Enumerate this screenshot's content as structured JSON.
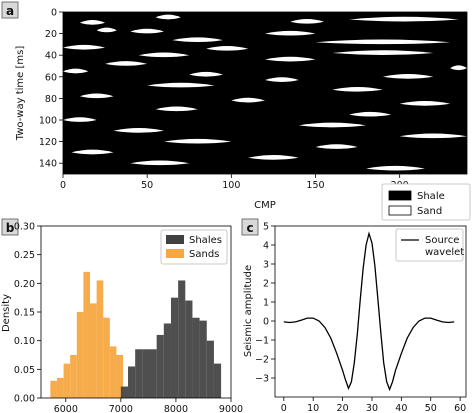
{
  "chart_data": [
    {
      "panel": "a",
      "type": "heatmap",
      "xlabel": "CMP",
      "ylabel": "Two-way time [ms]",
      "xlim": [
        0,
        240
      ],
      "ylim": [
        150,
        0
      ],
      "xticks": [
        0,
        50,
        100,
        150,
        200
      ],
      "yticks": [
        0,
        20,
        40,
        60,
        80,
        100,
        120,
        140
      ],
      "colors": {
        "Shale": "#000000",
        "Sand": "#ffffff"
      },
      "legend": [
        "Shale",
        "Sand"
      ],
      "legend_position": "bottom-right outside",
      "sand_lenses": [
        {
          "t": 5,
          "cmp0": 55,
          "cmp1": 70
        },
        {
          "t": 7,
          "cmp0": 170,
          "cmp1": 235
        },
        {
          "t": 9,
          "cmp0": 135,
          "cmp1": 155
        },
        {
          "t": 10,
          "cmp0": 10,
          "cmp1": 25
        },
        {
          "t": 17,
          "cmp0": 20,
          "cmp1": 32
        },
        {
          "t": 18,
          "cmp0": 40,
          "cmp1": 60
        },
        {
          "t": 20,
          "cmp0": 120,
          "cmp1": 150
        },
        {
          "t": 26,
          "cmp0": 65,
          "cmp1": 95
        },
        {
          "t": 28,
          "cmp0": 150,
          "cmp1": 230
        },
        {
          "t": 33,
          "cmp0": 0,
          "cmp1": 25
        },
        {
          "t": 34,
          "cmp0": 85,
          "cmp1": 110
        },
        {
          "t": 38,
          "cmp0": 160,
          "cmp1": 220
        },
        {
          "t": 40,
          "cmp0": 45,
          "cmp1": 75
        },
        {
          "t": 44,
          "cmp0": 120,
          "cmp1": 150
        },
        {
          "t": 48,
          "cmp0": 25,
          "cmp1": 50
        },
        {
          "t": 52,
          "cmp0": 230,
          "cmp1": 240
        },
        {
          "t": 55,
          "cmp0": 0,
          "cmp1": 15
        },
        {
          "t": 58,
          "cmp0": 75,
          "cmp1": 95
        },
        {
          "t": 60,
          "cmp0": 190,
          "cmp1": 220
        },
        {
          "t": 63,
          "cmp0": 120,
          "cmp1": 140
        },
        {
          "t": 68,
          "cmp0": 50,
          "cmp1": 90
        },
        {
          "t": 72,
          "cmp0": 160,
          "cmp1": 190
        },
        {
          "t": 78,
          "cmp0": 10,
          "cmp1": 30
        },
        {
          "t": 82,
          "cmp0": 100,
          "cmp1": 120
        },
        {
          "t": 85,
          "cmp0": 200,
          "cmp1": 230
        },
        {
          "t": 90,
          "cmp0": 55,
          "cmp1": 80
        },
        {
          "t": 95,
          "cmp0": 170,
          "cmp1": 195
        },
        {
          "t": 100,
          "cmp0": 0,
          "cmp1": 20
        },
        {
          "t": 105,
          "cmp0": 140,
          "cmp1": 180
        },
        {
          "t": 110,
          "cmp0": 30,
          "cmp1": 60
        },
        {
          "t": 115,
          "cmp0": 200,
          "cmp1": 240
        },
        {
          "t": 120,
          "cmp0": 60,
          "cmp1": 100
        },
        {
          "t": 125,
          "cmp0": 150,
          "cmp1": 175
        },
        {
          "t": 130,
          "cmp0": 5,
          "cmp1": 30
        },
        {
          "t": 135,
          "cmp0": 110,
          "cmp1": 140
        },
        {
          "t": 140,
          "cmp0": 40,
          "cmp1": 75
        },
        {
          "t": 145,
          "cmp0": 180,
          "cmp1": 215
        }
      ]
    },
    {
      "panel": "b",
      "type": "bar",
      "subtype": "histogram",
      "ylabel": "Density",
      "xlim": [
        5550,
        9000
      ],
      "ylim": [
        0,
        0.3
      ],
      "xticks": [
        6000,
        7000,
        8000,
        9000
      ],
      "yticks": [
        0.0,
        0.05,
        0.1,
        0.15,
        0.2,
        0.25,
        0.3
      ],
      "legend_position": "top-right",
      "series": [
        {
          "name": "Shales",
          "color": "#404040",
          "bin_edges": [
            7000,
            7130,
            7260,
            7390,
            7520,
            7650,
            7780,
            7910,
            8040,
            8170,
            8300,
            8430,
            8560,
            8690,
            8820
          ],
          "values": [
            0.02,
            0.055,
            0.085,
            0.085,
            0.085,
            0.11,
            0.13,
            0.175,
            0.205,
            0.17,
            0.14,
            0.135,
            0.1,
            0.06
          ]
        },
        {
          "name": "Sands",
          "color": "#f5a841",
          "bin_edges": [
            5720,
            5840,
            5960,
            6080,
            6200,
            6320,
            6440,
            6560,
            6680,
            6800,
            6920,
            7040
          ],
          "values": [
            0.03,
            0.035,
            0.06,
            0.075,
            0.15,
            0.22,
            0.165,
            0.205,
            0.14,
            0.09,
            0.075
          ]
        }
      ]
    },
    {
      "panel": "c",
      "type": "line",
      "ylabel": "Seismic amplitude",
      "xlim": [
        -3,
        62
      ],
      "ylim": [
        -4,
        5
      ],
      "xticks": [
        0,
        10,
        20,
        30,
        40,
        50,
        60
      ],
      "yticks": [
        -3,
        -2,
        -1,
        0,
        1,
        2,
        3,
        4,
        5
      ],
      "legend_position": "top-right",
      "series": [
        {
          "name": "Source wavelet",
          "color": "#000000",
          "x": [
            0,
            2,
            4,
            6,
            8,
            10,
            12,
            14,
            16,
            18,
            20,
            21,
            22,
            23,
            24,
            25,
            26,
            27,
            28,
            29,
            30,
            31,
            32,
            33,
            34,
            35,
            36,
            37,
            38,
            40,
            42,
            44,
            46,
            48,
            50,
            52,
            54,
            56,
            58
          ],
          "y": [
            -0.05,
            -0.08,
            -0.05,
            0.05,
            0.15,
            0.15,
            0.0,
            -0.35,
            -0.9,
            -1.7,
            -2.6,
            -3.1,
            -3.55,
            -3.2,
            -2.2,
            -0.7,
            1.1,
            2.8,
            4.0,
            4.6,
            4.1,
            2.9,
            1.2,
            -0.6,
            -2.2,
            -3.2,
            -3.6,
            -3.2,
            -2.6,
            -1.7,
            -0.9,
            -0.35,
            0.0,
            0.15,
            0.15,
            0.05,
            -0.05,
            -0.08,
            -0.05
          ]
        }
      ]
    }
  ],
  "panels": {
    "a": {
      "label": "a",
      "xlabel": "CMP",
      "ylabel": "Two-way time [ms]",
      "xtick_labels": [
        "0",
        "50",
        "100",
        "150",
        "200"
      ],
      "ytick_labels": [
        "0",
        "20",
        "40",
        "60",
        "80",
        "100",
        "120",
        "140"
      ],
      "legend": [
        {
          "label": "Shale",
          "color": "#000000"
        },
        {
          "label": "Sand",
          "color": "#ffffff"
        }
      ]
    },
    "b": {
      "label": "b",
      "ylabel": "Density",
      "xtick_labels": [
        "6000",
        "7000",
        "8000",
        "9000"
      ],
      "ytick_labels": [
        "0.00",
        "0.05",
        "0.10",
        "0.15",
        "0.20",
        "0.25",
        "0.30"
      ],
      "legend": [
        {
          "label": "Shales",
          "color": "#404040"
        },
        {
          "label": "Sands",
          "color": "#f5a841"
        }
      ]
    },
    "c": {
      "label": "c",
      "ylabel": "Seismic amplitude",
      "xtick_labels": [
        "0",
        "10",
        "20",
        "30",
        "40",
        "50",
        "60"
      ],
      "ytick_labels": [
        "−3",
        "−2",
        "−1",
        "0",
        "1",
        "2",
        "3",
        "4",
        "5"
      ],
      "legend_line1": "Source",
      "legend_line2": "wavelet"
    }
  }
}
